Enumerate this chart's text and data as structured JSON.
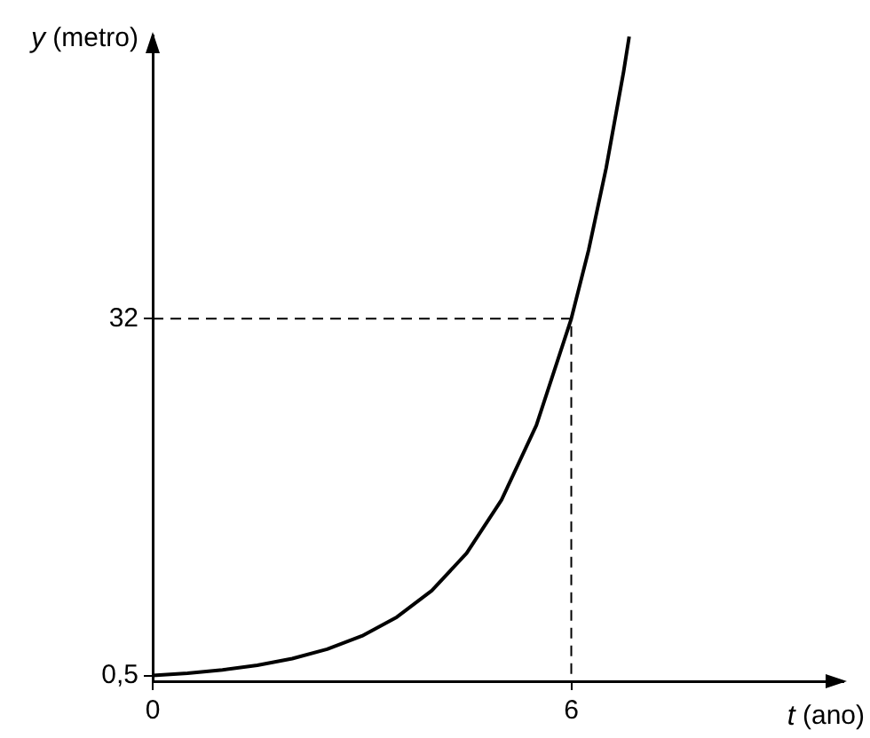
{
  "chart_data": {
    "type": "line",
    "xlabel": "t (ano)",
    "ylabel": "y (metro)",
    "xlim": [
      0,
      9.9
    ],
    "ylim": [
      0,
      57
    ],
    "xticks": [
      0,
      6
    ],
    "yticks": [
      {
        "value": 0.5,
        "label": "0,5"
      },
      32
    ],
    "marker": "none",
    "series": [
      {
        "color": "#000000",
        "line_style": "solid",
        "x": [
          0,
          0.5,
          1,
          1.5,
          2,
          2.5,
          3,
          3.5,
          4,
          4.5,
          5,
          5.5,
          6,
          6.25,
          6.5,
          6.75,
          6.83
        ],
        "values": [
          0.5,
          0.71,
          1,
          1.41,
          2,
          2.83,
          4,
          5.66,
          8,
          11.3,
          16,
          22.6,
          32,
          38.1,
          45.3,
          53.8,
          56.9
        ]
      },
      {
        "color": "#000000",
        "line_style": "dashed",
        "x": [
          0,
          6,
          6
        ],
        "values": [
          32,
          32,
          0
        ]
      }
    ]
  }
}
